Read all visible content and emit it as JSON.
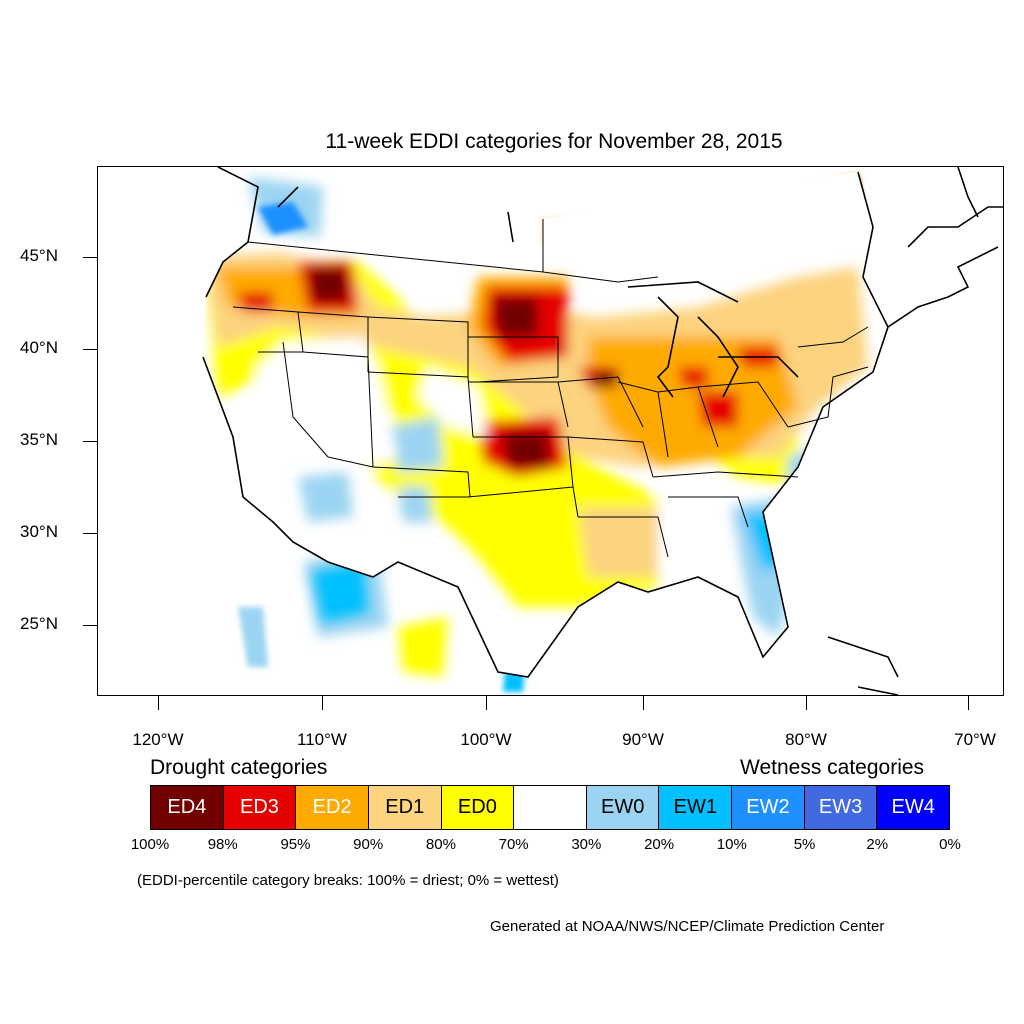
{
  "map": {
    "title": "11-week EDDI categories for November 28, 2015",
    "lat_labels": [
      "45°N",
      "40°N",
      "35°N",
      "30°N",
      "25°N"
    ],
    "lon_labels": [
      "120°W",
      "110°W",
      "100°W",
      "90°W",
      "80°W",
      "70°W"
    ]
  },
  "legend": {
    "drought_heading": "Drought categories",
    "wetness_heading": "Wetness categories",
    "categories": [
      {
        "label": "ED4",
        "color": "#730000",
        "text_color": "#ffffff"
      },
      {
        "label": "ED3",
        "color": "#e60000",
        "text_color": "#ffffff"
      },
      {
        "label": "ED2",
        "color": "#ffaa00",
        "text_color": "#ffffff"
      },
      {
        "label": "ED1",
        "color": "#fcd37f",
        "text_color": "#000000"
      },
      {
        "label": "ED0",
        "color": "#ffff00",
        "text_color": "#000000"
      },
      {
        "label": "",
        "color": "#ffffff",
        "text_color": "#000000"
      },
      {
        "label": "EW0",
        "color": "#9bd4f2",
        "text_color": "#000000"
      },
      {
        "label": "EW1",
        "color": "#00c0ff",
        "text_color": "#000000"
      },
      {
        "label": "EW2",
        "color": "#1e90ff",
        "text_color": "#ffffff"
      },
      {
        "label": "EW3",
        "color": "#4169e1",
        "text_color": "#ffffff"
      },
      {
        "label": "EW4",
        "color": "#0000ff",
        "text_color": "#ffffff"
      }
    ],
    "percent_breaks": [
      "100%",
      "98%",
      "95%",
      "90%",
      "80%",
      "70%",
      "30%",
      "20%",
      "10%",
      "5%",
      "2%",
      "0%"
    ],
    "footnote": "(EDDI-percentile category breaks: 100% = driest; 0% = wettest)"
  },
  "credit": "Generated at NOAA/NWS/NCEP/Climate Prediction Center"
}
